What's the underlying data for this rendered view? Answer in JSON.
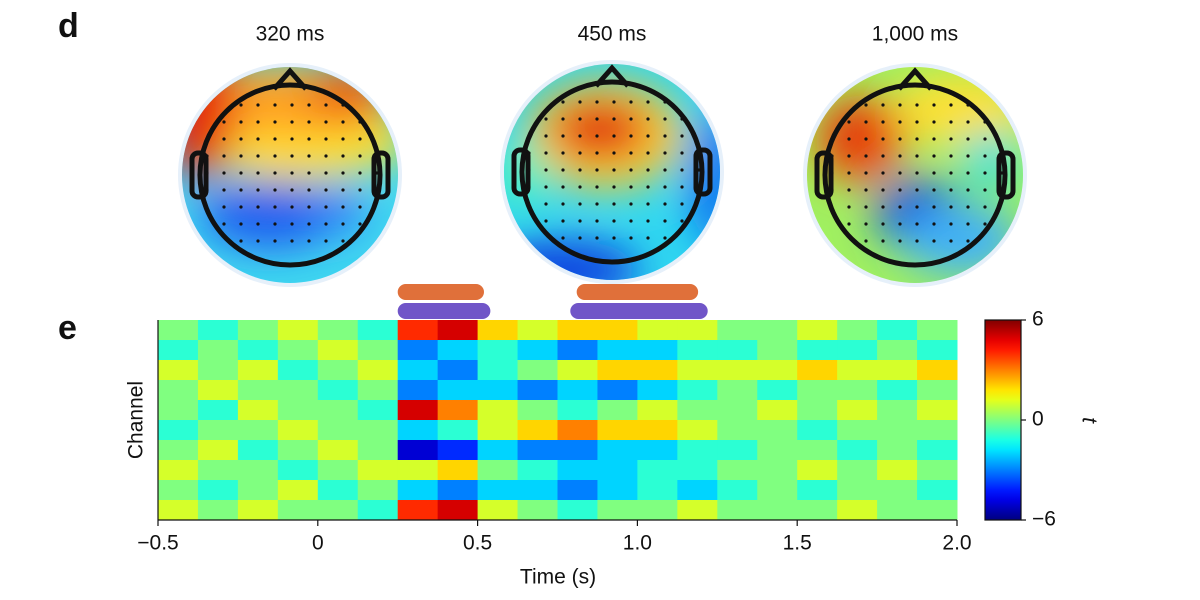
{
  "panel_labels": [
    "d",
    "e"
  ],
  "topomaps": [
    {
      "title": "320 ms"
    },
    {
      "title": "450 ms"
    },
    {
      "title": "1,000 ms"
    }
  ],
  "chart_data": {
    "type": "heatmap",
    "xlabel": "Time (s)",
    "ylabel": "Channel",
    "colormap": "jet",
    "xlim": [
      -0.5,
      2.0
    ],
    "xticks": [
      {
        "value": -0.5,
        "label": "−0.5"
      },
      0,
      0.5,
      {
        "value": 1.0,
        "label": "1.0"
      },
      1.5,
      {
        "value": 2.0,
        "label": "2.0"
      }
    ],
    "x": [
      -0.4375,
      -0.3125,
      -0.1875,
      -0.0625,
      0.0625,
      0.1875,
      0.3125,
      0.4375,
      0.5625,
      0.6875,
      0.8125,
      0.9375,
      1.0625,
      1.1875,
      1.3125,
      1.4375,
      1.5625,
      1.6875,
      1.8125,
      1.9375
    ],
    "values": [
      [
        0,
        -1,
        0,
        1,
        0,
        -1,
        4,
        5,
        2,
        1,
        2,
        2,
        1,
        1,
        0,
        0,
        1,
        0,
        -1,
        0
      ],
      [
        -1,
        0,
        -1,
        0,
        1,
        0,
        -3,
        -2,
        -1,
        -2,
        -3,
        -2,
        -2,
        -1,
        -1,
        0,
        -1,
        -1,
        0,
        -1
      ],
      [
        1,
        0,
        1,
        -1,
        0,
        1,
        -2,
        -3,
        -1,
        0,
        1,
        2,
        2,
        1,
        1,
        1,
        2,
        1,
        1,
        2
      ],
      [
        0,
        1,
        0,
        0,
        -1,
        0,
        -3,
        -2,
        -2,
        -3,
        -2,
        -3,
        -2,
        -1,
        0,
        -1,
        0,
        0,
        -1,
        0
      ],
      [
        0,
        -1,
        1,
        0,
        0,
        -1,
        5,
        3,
        1,
        0,
        -1,
        0,
        1,
        0,
        0,
        1,
        0,
        1,
        0,
        1
      ],
      [
        -1,
        0,
        0,
        1,
        0,
        0,
        -2,
        -1,
        1,
        2,
        3,
        2,
        2,
        1,
        0,
        0,
        -1,
        0,
        0,
        0
      ],
      [
        0,
        1,
        -1,
        0,
        1,
        0,
        -5,
        -4,
        -2,
        -3,
        -3,
        -2,
        -2,
        -1,
        -1,
        0,
        0,
        -1,
        0,
        -1
      ],
      [
        1,
        0,
        0,
        -1,
        0,
        1,
        1,
        2,
        0,
        -1,
        -2,
        -2,
        -1,
        -1,
        0,
        0,
        1,
        0,
        1,
        0
      ],
      [
        0,
        -1,
        0,
        1,
        -1,
        0,
        -2,
        -3,
        -2,
        -2,
        -3,
        -2,
        -1,
        -2,
        -1,
        0,
        -1,
        0,
        0,
        -1
      ],
      [
        1,
        0,
        1,
        0,
        0,
        -1,
        4,
        5,
        1,
        0,
        -1,
        0,
        0,
        1,
        0,
        0,
        0,
        1,
        0,
        0
      ]
    ],
    "colorbar": {
      "label": "t",
      "lim": [
        -6,
        6
      ],
      "ticks": [
        6,
        0,
        {
          "value": -6,
          "label": "−6"
        }
      ]
    },
    "clusters": [
      {
        "color": "#e0703a",
        "start": 0.25,
        "end": 0.52
      },
      {
        "color": "#7055c8",
        "start": 0.25,
        "end": 0.54
      },
      {
        "color": "#e0703a",
        "start": 0.81,
        "end": 1.19
      },
      {
        "color": "#7055c8",
        "start": 0.79,
        "end": 1.22
      }
    ]
  }
}
